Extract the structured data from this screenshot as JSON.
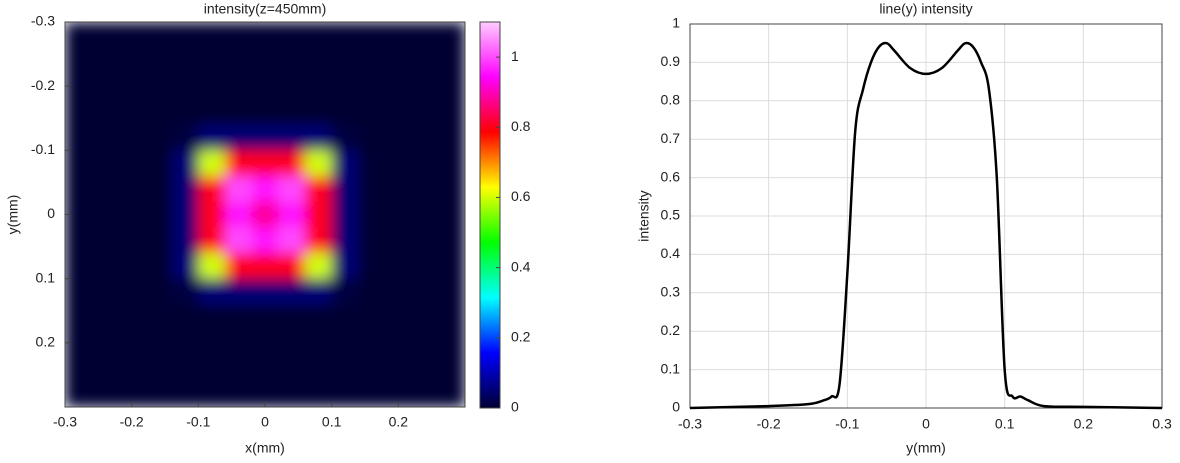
{
  "chart_data": [
    {
      "type": "heatmap",
      "title": "intensity(z=450mm)",
      "xlabel": "x(mm)",
      "ylabel": "y(mm)",
      "x": [
        -0.28,
        -0.24,
        -0.2,
        -0.16,
        -0.12,
        -0.08,
        -0.04,
        0,
        0.04,
        0.08,
        0.12,
        0.16,
        0.2,
        0.24,
        0.28
      ],
      "y": [
        -0.28,
        -0.24,
        -0.2,
        -0.16,
        -0.12,
        -0.08,
        -0.04,
        0,
        0.04,
        0.08,
        0.12,
        0.16,
        0.2,
        0.24,
        0.28
      ],
      "z": [
        [
          0,
          0,
          0,
          0,
          0,
          0,
          0,
          0,
          0,
          0,
          0,
          0,
          0,
          0,
          0
        ],
        [
          0,
          0,
          0,
          0,
          0,
          0,
          0,
          0,
          0,
          0,
          0,
          0,
          0,
          0,
          0
        ],
        [
          0,
          0,
          0,
          0,
          0,
          0,
          0,
          0,
          0,
          0,
          0,
          0,
          0,
          0,
          0
        ],
        [
          0,
          0,
          0,
          0,
          0,
          0,
          0,
          0,
          0,
          0,
          0,
          0,
          0,
          0,
          0
        ],
        [
          0,
          0,
          0,
          0,
          0.01,
          0.05,
          0.05,
          0.05,
          0.05,
          0.05,
          0.01,
          0,
          0,
          0,
          0
        ],
        [
          0,
          0,
          0,
          0,
          0.05,
          0.6,
          0.8,
          0.8,
          0.8,
          0.6,
          0.05,
          0,
          0,
          0,
          0
        ],
        [
          0,
          0,
          0,
          0,
          0.05,
          0.8,
          1,
          0.95,
          1,
          0.8,
          0.05,
          0,
          0,
          0,
          0
        ],
        [
          0,
          0,
          0,
          0,
          0.05,
          0.8,
          0.95,
          0.88,
          0.95,
          0.8,
          0.05,
          0,
          0,
          0,
          0
        ],
        [
          0,
          0,
          0,
          0,
          0.05,
          0.8,
          1,
          0.95,
          1,
          0.8,
          0.05,
          0,
          0,
          0,
          0
        ],
        [
          0,
          0,
          0,
          0,
          0.05,
          0.6,
          0.8,
          0.8,
          0.8,
          0.6,
          0.05,
          0,
          0,
          0,
          0
        ],
        [
          0,
          0,
          0,
          0,
          0.01,
          0.05,
          0.05,
          0.05,
          0.05,
          0.05,
          0.01,
          0,
          0,
          0,
          0
        ],
        [
          0,
          0,
          0,
          0,
          0,
          0,
          0,
          0,
          0,
          0,
          0,
          0,
          0,
          0,
          0
        ],
        [
          0,
          0,
          0,
          0,
          0,
          0,
          0,
          0,
          0,
          0,
          0,
          0,
          0,
          0,
          0
        ],
        [
          0,
          0,
          0,
          0,
          0,
          0,
          0,
          0,
          0,
          0,
          0,
          0,
          0,
          0,
          0
        ],
        [
          0,
          0,
          0,
          0,
          0,
          0,
          0,
          0,
          0,
          0,
          0,
          0,
          0,
          0,
          0
        ]
      ],
      "xlim": [
        -0.3,
        0.3
      ],
      "xticks": [
        -0.3,
        -0.2,
        -0.1,
        0,
        0.1,
        0.2
      ],
      "ylim": [
        -0.3,
        0.3
      ],
      "yticks": [
        -0.3,
        -0.2,
        -0.1,
        0,
        0.1,
        0.2
      ],
      "y_reversed": true,
      "clim": [
        0,
        1.1
      ],
      "cticks": [
        0,
        0.2,
        0.4,
        0.6,
        0.8,
        1
      ],
      "colormap": [
        "#000033",
        "#0000ff",
        "#00ffff",
        "#00ff00",
        "#ffff00",
        "#ff0000",
        "#ff00ff",
        "#ffccff"
      ]
    },
    {
      "type": "line",
      "title": "line(y) intensity",
      "xlabel": "y(mm)",
      "ylabel": "intensity",
      "color": "#000000",
      "grid": true,
      "x": [
        -0.3,
        -0.2,
        -0.15,
        -0.13,
        -0.12,
        -0.11,
        -0.1,
        -0.09,
        -0.08,
        -0.07,
        -0.06,
        -0.05,
        -0.04,
        -0.02,
        0,
        0.02,
        0.04,
        0.05,
        0.06,
        0.07,
        0.08,
        0.09,
        0.1,
        0.11,
        0.12,
        0.13,
        0.15,
        0.2,
        0.3
      ],
      "values": [
        0,
        0.005,
        0.01,
        0.02,
        0.03,
        0.06,
        0.35,
        0.72,
        0.83,
        0.9,
        0.94,
        0.95,
        0.93,
        0.885,
        0.87,
        0.885,
        0.93,
        0.95,
        0.94,
        0.9,
        0.83,
        0.6,
        0.1,
        0.03,
        0.03,
        0.02,
        0.005,
        0.003,
        0
      ],
      "xlim": [
        -0.3,
        0.3
      ],
      "xticks": [
        -0.3,
        -0.2,
        -0.1,
        0,
        0.1,
        0.2,
        0.3
      ],
      "ylim": [
        0,
        1
      ],
      "yticks": [
        0,
        0.1,
        0.2,
        0.3,
        0.4,
        0.5,
        0.6,
        0.7,
        0.8,
        0.9,
        1
      ]
    }
  ]
}
